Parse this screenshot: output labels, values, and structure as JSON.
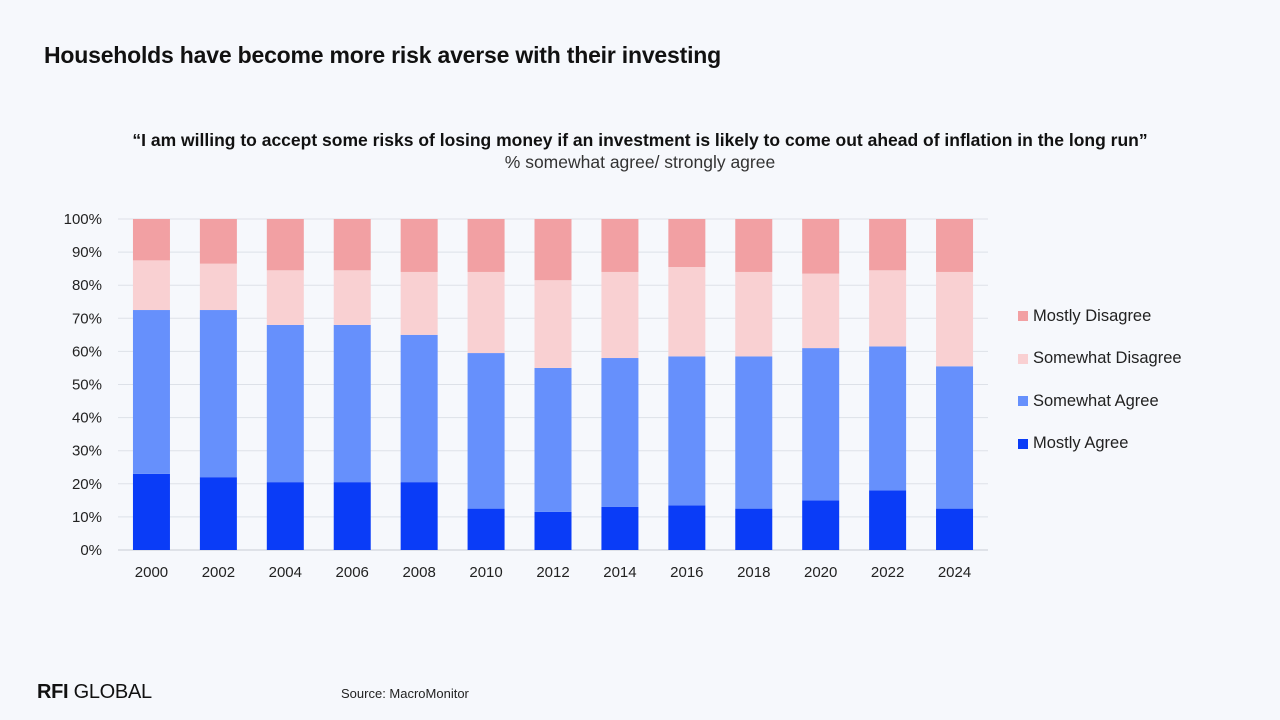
{
  "header": {
    "title": "Households have become more risk averse with their investing"
  },
  "footer": {
    "logo_bold": "RFI",
    "logo_rest": " GLOBAL",
    "source": "Source: MacroMonitor"
  },
  "colors": {
    "background": "#f6f8fc",
    "mostly_disagree": "#f2a0a3",
    "somewhat_disagree": "#f9d0d2",
    "somewhat_agree": "#6690fc",
    "mostly_agree": "#0a3cf7"
  },
  "chart_data": {
    "type": "bar",
    "stacked": true,
    "title": "“I am willing to accept some risks of losing money if an investment is likely to come out ahead of inflation in the long run”",
    "subtitle": "% somewhat agree/ strongly agree",
    "xlabel": "",
    "ylabel": "",
    "ylim": [
      0,
      100
    ],
    "y_ticks": [
      "0%",
      "10%",
      "20%",
      "30%",
      "40%",
      "50%",
      "60%",
      "70%",
      "80%",
      "90%",
      "100%"
    ],
    "grid": true,
    "legend_position": "right",
    "categories": [
      "2000",
      "2002",
      "2004",
      "2006",
      "2008",
      "2010",
      "2012",
      "2014",
      "2016",
      "2018",
      "2020",
      "2022",
      "2024"
    ],
    "series": [
      {
        "name": "Mostly Agree",
        "color": "#0a3cf7",
        "values": [
          23,
          22,
          20.5,
          20.5,
          20.5,
          12.5,
          11.5,
          13,
          13.5,
          12.5,
          15,
          18,
          12.5
        ]
      },
      {
        "name": "Somewhat Agree",
        "color": "#6690fc",
        "values": [
          49.5,
          50.5,
          47.5,
          47.5,
          44.5,
          47,
          43.5,
          45,
          45,
          46,
          46,
          43.5,
          43
        ]
      },
      {
        "name": "Somewhat Disagree",
        "color": "#f9d0d2",
        "values": [
          15,
          14,
          16.5,
          16.5,
          19,
          24.5,
          26.5,
          26,
          27,
          25.5,
          22.5,
          23,
          28.5
        ]
      },
      {
        "name": "Mostly Disagree",
        "color": "#f2a0a3",
        "values": [
          12.5,
          13.5,
          15.5,
          15.5,
          16,
          16,
          18.5,
          16,
          14.5,
          16,
          16.5,
          15.5,
          16
        ]
      }
    ]
  }
}
